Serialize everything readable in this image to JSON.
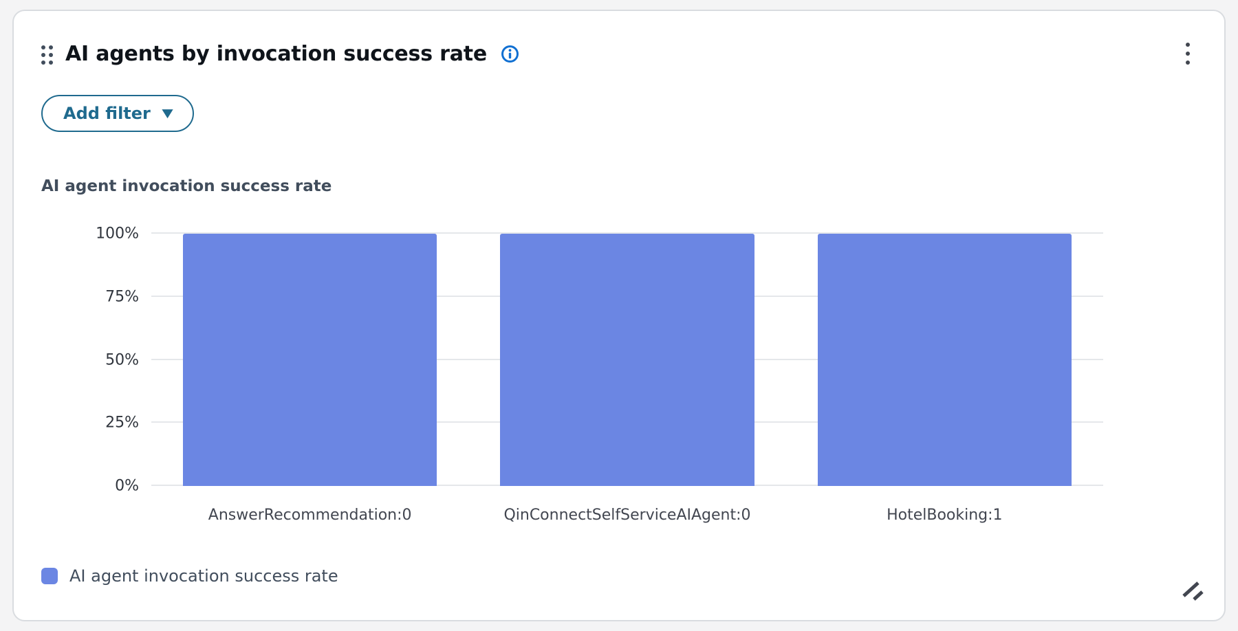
{
  "widget": {
    "title": "AI agents by invocation success rate"
  },
  "filter": {
    "add_filter_label": "Add filter"
  },
  "icons": {
    "caret_down": "▼",
    "drag_handle": "drag-handle-icon",
    "info": "info-icon",
    "kebab_menu": "kebab-menu-icon",
    "resize": "resize-icon"
  },
  "chart_data": {
    "type": "bar",
    "title": "AI agent invocation success rate",
    "categories": [
      "AnswerRecommendation:0",
      "QinConnectSelfServiceAIAgent:0",
      "HotelBooking:1"
    ],
    "values": [
      100,
      100,
      100
    ],
    "value_unit": "%",
    "xlabel": "",
    "ylabel": "",
    "ylim": [
      0,
      100
    ],
    "y_ticks": [
      "100%",
      "75%",
      "50%",
      "25%",
      "0%"
    ],
    "y_tick_positions": [
      100,
      75,
      50,
      25,
      0
    ],
    "grid": true,
    "bar_color": "#6b86e3",
    "legend_position": "bottom",
    "legend": [
      {
        "label": "AI agent invocation success rate",
        "color": "#6b86e3"
      }
    ]
  },
  "colors": {
    "bar": "#6b86e3",
    "button_accent": "#1f6a8e",
    "info_blue": "#1170d2",
    "gridline": "#e5e7ea",
    "title_text": "#0f141a",
    "axis_text": "#424650"
  }
}
